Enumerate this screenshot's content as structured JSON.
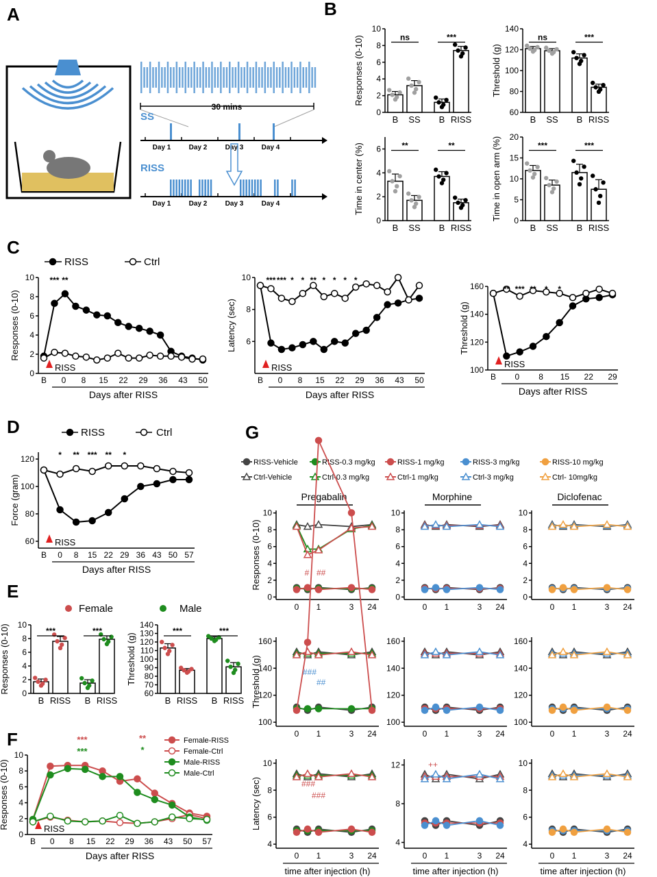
{
  "colors": {
    "riss": "#111111",
    "ctrl_fill": "#ffffff",
    "grey": "#a0a0a0",
    "blue": "#4a8fd0",
    "red": "#cc4d4d",
    "green": "#1e8c1e",
    "orange": "#f0a040",
    "sig_red": "#cc3333",
    "sig_green": "#1e8c1e"
  },
  "panel_letters": [
    "A",
    "B",
    "C",
    "D",
    "E",
    "F",
    "G"
  ],
  "panel_a": {
    "duration_label": "30 mins",
    "ss_label": "SS",
    "riss_label": "RISS",
    "days": [
      "Day 1",
      "Day 2",
      "Day 3",
      "Day 4"
    ]
  },
  "panel_b": [
    {
      "ylabel": "Responses (0-10)",
      "ylim": [
        0,
        10
      ],
      "ticks": [
        0,
        2,
        4,
        6,
        8,
        10
      ],
      "xt": [
        "B",
        "SS",
        "B",
        "RISS"
      ],
      "values": [
        2.1,
        3.2,
        1.2,
        7.4
      ],
      "errors": [
        0.4,
        0.6,
        0.4,
        0.5
      ],
      "sig": [
        "ns",
        "***"
      ]
    },
    {
      "ylabel": "Threshold (g)",
      "ylim": [
        60,
        140
      ],
      "ticks": [
        60,
        80,
        100,
        120,
        140
      ],
      "xt": [
        "B",
        "SS",
        "B",
        "RISS"
      ],
      "values": [
        121,
        119,
        112,
        84
      ],
      "errors": [
        2,
        2,
        4,
        3
      ],
      "sig": [
        "ns",
        "***"
      ]
    },
    {
      "ylabel": "Time in center (%)",
      "ylim": [
        0,
        7
      ],
      "ticks": [
        0,
        2,
        4,
        6
      ],
      "xt": [
        "B",
        "SS",
        "B",
        "RISS"
      ],
      "values": [
        3.3,
        1.7,
        3.7,
        1.5
      ],
      "errors": [
        0.6,
        0.4,
        0.4,
        0.3
      ],
      "sig": [
        "**",
        "**"
      ]
    },
    {
      "ylabel": "Time in open arm (%)",
      "ylim": [
        0,
        20
      ],
      "ticks": [
        0,
        5,
        10,
        15,
        20
      ],
      "xt": [
        "B",
        "SS",
        "B",
        "RISS"
      ],
      "values": [
        12,
        8.5,
        11.5,
        7.5
      ],
      "errors": [
        1.2,
        1.2,
        2,
        2.3
      ],
      "sig": [
        "***",
        "***"
      ]
    }
  ],
  "panel_c": {
    "legend": [
      "RISS",
      "Ctrl"
    ],
    "xlabel": "Days after RISS",
    "arrow_label": "RISS",
    "charts": [
      {
        "ylabel": "Responses (0-10)",
        "ylim": [
          0,
          10
        ],
        "ticks": [
          0,
          2,
          4,
          6,
          8,
          10
        ],
        "xt": [
          "B",
          "0",
          "8",
          "15",
          "22",
          "29",
          "36",
          "43",
          "50"
        ],
        "riss": [
          1.8,
          7.3,
          8.3,
          7.0,
          6.6,
          6.1,
          6.0,
          5.3,
          4.9,
          4.7,
          4.4,
          4.0,
          2.3,
          1.8,
          1.6,
          1.4
        ],
        "ctrl": [
          1.6,
          2.2,
          2.1,
          1.8,
          1.7,
          1.4,
          1.6,
          2.1,
          1.6,
          1.6,
          1.9,
          1.8,
          1.8,
          1.7,
          1.5,
          1.5
        ],
        "sig_text": [
          "***",
          "**"
        ]
      },
      {
        "ylabel": "Latency (sec)",
        "ylim": [
          4,
          10
        ],
        "ticks": [
          6,
          8,
          10
        ],
        "xt": [
          "B",
          "0",
          "8",
          "15",
          "22",
          "29",
          "36",
          "43",
          "50"
        ],
        "riss": [
          9.5,
          5.9,
          5.5,
          5.6,
          5.8,
          6.0,
          5.5,
          6.0,
          5.9,
          6.5,
          6.7,
          7.5,
          8.3,
          8.4,
          8.6,
          8.7
        ],
        "ctrl": [
          9.5,
          9.3,
          8.7,
          8.5,
          9.0,
          9.5,
          8.8,
          9.0,
          8.7,
          9.4,
          9.6,
          9.5,
          9.1,
          10.0,
          8.6,
          9.5
        ],
        "sig_text": [
          "***",
          "***",
          "*",
          "*",
          "**",
          "*",
          "*",
          "*",
          "*"
        ]
      },
      {
        "ylabel": "Threshold (g)",
        "ylim": [
          100,
          160
        ],
        "ticks": [
          100,
          120,
          140,
          160
        ],
        "xt": [
          "B",
          "0",
          "8",
          "15",
          "22",
          "29"
        ],
        "riss": [
          155,
          110,
          113,
          117,
          124,
          134,
          146,
          151,
          152,
          154
        ],
        "ctrl": [
          155,
          158,
          153,
          157,
          156,
          155,
          152,
          155,
          158,
          155
        ],
        "sig_text": [
          "**",
          "***",
          "**",
          "*",
          "*"
        ]
      }
    ]
  },
  "panel_d": {
    "legend": [
      "RISS",
      "Ctrl"
    ],
    "ylabel": "Force (gram)",
    "xlabel": "Days after RISS",
    "arrow_label": "RISS",
    "xt": [
      "B",
      "0",
      "8",
      "15",
      "22",
      "29",
      "36",
      "43",
      "50",
      "57"
    ],
    "ticks": [
      60,
      80,
      100,
      120
    ],
    "riss": [
      112,
      83,
      74,
      75,
      81,
      91,
      100,
      102,
      105,
      105
    ],
    "ctrl": [
      112,
      109,
      113,
      111,
      115,
      115,
      115,
      113,
      111,
      110
    ],
    "sig_text": [
      "*",
      "**",
      "***",
      "**",
      "*"
    ]
  },
  "panel_e": {
    "legend": [
      "Female",
      "Male"
    ],
    "charts": [
      {
        "ylabel": "Responses (0-10)",
        "ylim": [
          0,
          10
        ],
        "ticks": [
          0,
          2,
          4,
          6,
          8,
          10
        ],
        "xt": [
          "B",
          "RISS",
          "B",
          "RISS"
        ],
        "values": [
          1.7,
          7.6,
          1.5,
          7.9
        ],
        "errors": [
          0.4,
          0.7,
          0.5,
          0.5
        ],
        "sig": [
          "***",
          "***"
        ]
      },
      {
        "ylabel": "Threshold (g)",
        "ylim": [
          60,
          140
        ],
        "ticks": [
          60,
          70,
          80,
          90,
          100,
          110,
          120,
          130,
          140
        ],
        "xt": [
          "B",
          "RISS",
          "B",
          "RISS"
        ],
        "values": [
          113,
          87,
          124,
          91
        ],
        "errors": [
          5,
          2,
          2,
          5
        ],
        "sig": [
          "***",
          "***"
        ]
      }
    ]
  },
  "panel_f": {
    "legend": [
      "Female-RISS",
      "Female-Ctrl",
      "Male-RISS",
      "Male-Ctrl"
    ],
    "ylabel": "Responses (0-10)",
    "xlabel": "Days after RISS",
    "arrow_label": "RISS",
    "xt": [
      "B",
      "0",
      "8",
      "15",
      "22",
      "29",
      "36",
      "43",
      "50",
      "57"
    ],
    "ticks": [
      0,
      2,
      4,
      6,
      8,
      10
    ],
    "female_riss": [
      1.9,
      8.6,
      8.7,
      8.7,
      8.0,
      6.7,
      7.0,
      5.2,
      3.9,
      2.7,
      2.3
    ],
    "female_ctrl": [
      1.6,
      2.2,
      1.8,
      1.6,
      1.7,
      1.5,
      1.4,
      1.6,
      2.0,
      2.5,
      2.0
    ],
    "male_riss": [
      1.9,
      7.5,
      8.3,
      8.2,
      7.3,
      7.3,
      5.3,
      4.4,
      3.7,
      2.2,
      1.8
    ],
    "male_ctrl": [
      1.6,
      2.3,
      1.7,
      1.6,
      1.7,
      2.4,
      1.4,
      1.6,
      2.2,
      2.0,
      1.9
    ],
    "sig_red": [
      "***",
      "**"
    ],
    "sig_green": [
      "***",
      "*"
    ]
  },
  "panel_g": {
    "legend": [
      "RISS-Vehicle",
      "RISS-0.3 mg/kg",
      "RISS-1 mg/kg",
      "RISS-3 mg/kg",
      "RISS-10 mg/kg",
      "Ctrl-Vehicle",
      "Ctrl-0.3 mg/kg",
      "Ctrl-1 mg/kg",
      "Ctrl-3 mg/kg",
      "Ctrl- 10mg/kg"
    ],
    "drugs": [
      "Pregabalin",
      "Morphine",
      "Diclofenac"
    ],
    "xlabel": "time after injection (h)",
    "xt": [
      "0",
      "1",
      "3",
      "24"
    ],
    "row_labels": [
      "Responses (0-10)",
      "Threshold (g)",
      "Latency (sec)"
    ],
    "row_ticks": [
      [
        0,
        2,
        4,
        6,
        8,
        10
      ],
      [
        100,
        120,
        140,
        160
      ],
      [
        4,
        6,
        8,
        10
      ]
    ],
    "morphine_latency_ticks": [
      4,
      8,
      12
    ],
    "annotations": [
      "#",
      "##",
      "###",
      "##",
      "###",
      "###",
      "++"
    ]
  }
}
